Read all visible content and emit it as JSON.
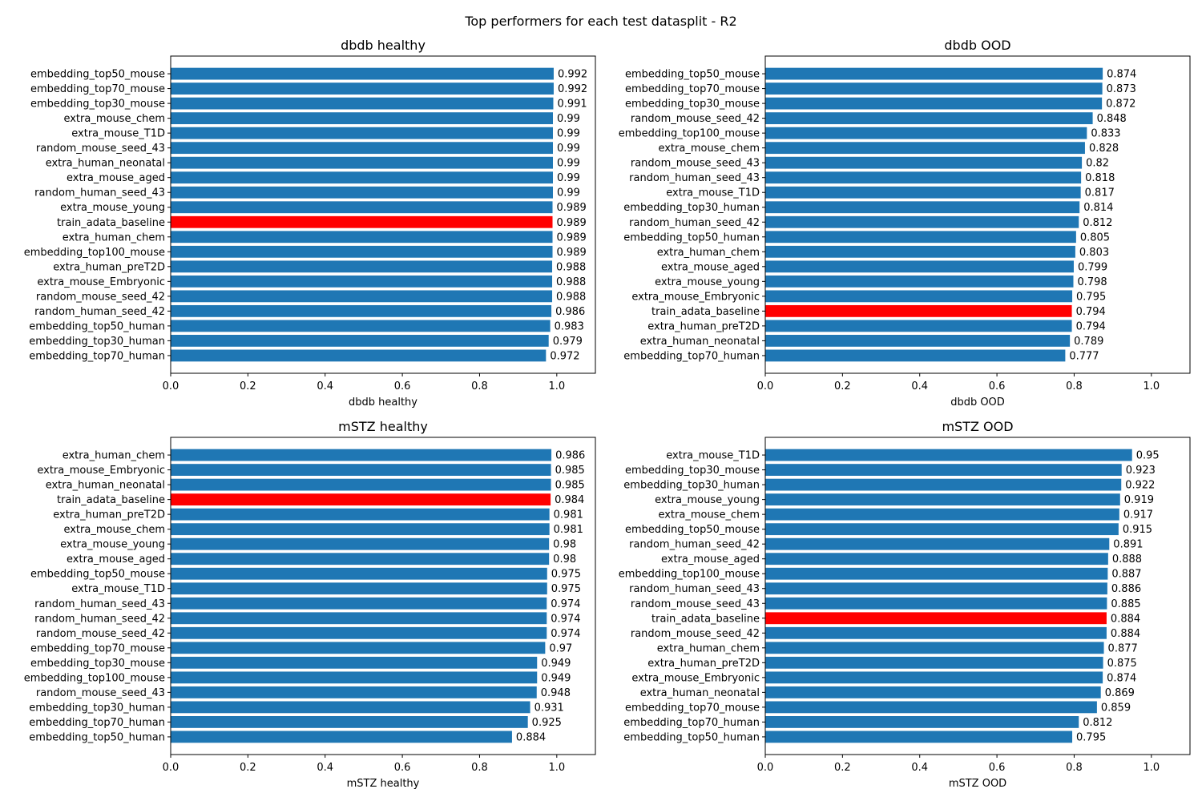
{
  "figure": {
    "title": "Top performers for each test datasplit - R2"
  },
  "colors": {
    "bar": "#1f77b4",
    "highlight": "#ff0000",
    "highlight_label": "train_adata_baseline"
  },
  "chart_data": [
    {
      "type": "bar",
      "orientation": "horizontal",
      "title": "dbdb healthy",
      "xlabel": "dbdb healthy",
      "ylabel": "",
      "xlim": [
        0,
        1.1
      ],
      "xticks": [
        0.0,
        0.2,
        0.4,
        0.6,
        0.8,
        1.0
      ],
      "xtick_labels": [
        "0.0",
        "0.2",
        "0.4",
        "0.6",
        "0.8",
        "1.0"
      ],
      "grid": false,
      "categories": [
        "embedding_top50_mouse",
        "embedding_top70_mouse",
        "embedding_top30_mouse",
        "extra_mouse_chem",
        "extra_mouse_T1D",
        "random_mouse_seed_43",
        "extra_human_neonatal",
        "extra_mouse_aged",
        "random_human_seed_43",
        "extra_mouse_young",
        "train_adata_baseline",
        "extra_human_chem",
        "embedding_top100_mouse",
        "extra_human_preT2D",
        "extra_mouse_Embryonic",
        "random_mouse_seed_42",
        "random_human_seed_42",
        "embedding_top50_human",
        "embedding_top30_human",
        "embedding_top70_human"
      ],
      "values": [
        0.992,
        0.992,
        0.991,
        0.99,
        0.99,
        0.99,
        0.99,
        0.99,
        0.99,
        0.989,
        0.989,
        0.989,
        0.989,
        0.988,
        0.988,
        0.988,
        0.986,
        0.983,
        0.979,
        0.972
      ],
      "value_labels": [
        "0.992",
        "0.992",
        "0.991",
        "0.99",
        "0.99",
        "0.99",
        "0.99",
        "0.99",
        "0.99",
        "0.989",
        "0.989",
        "0.989",
        "0.989",
        "0.988",
        "0.988",
        "0.988",
        "0.986",
        "0.983",
        "0.979",
        "0.972"
      ]
    },
    {
      "type": "bar",
      "orientation": "horizontal",
      "title": "dbdb OOD",
      "xlabel": "dbdb OOD",
      "ylabel": "",
      "xlim": [
        0,
        1.1
      ],
      "xticks": [
        0.0,
        0.2,
        0.4,
        0.6,
        0.8,
        1.0
      ],
      "xtick_labels": [
        "0.0",
        "0.2",
        "0.4",
        "0.6",
        "0.8",
        "1.0"
      ],
      "grid": false,
      "categories": [
        "embedding_top50_mouse",
        "embedding_top70_mouse",
        "embedding_top30_mouse",
        "random_mouse_seed_42",
        "embedding_top100_mouse",
        "extra_mouse_chem",
        "random_mouse_seed_43",
        "random_human_seed_43",
        "extra_mouse_T1D",
        "embedding_top30_human",
        "random_human_seed_42",
        "embedding_top50_human",
        "extra_human_chem",
        "extra_mouse_aged",
        "extra_mouse_young",
        "extra_mouse_Embryonic",
        "train_adata_baseline",
        "extra_human_preT2D",
        "extra_human_neonatal",
        "embedding_top70_human"
      ],
      "values": [
        0.874,
        0.873,
        0.872,
        0.848,
        0.833,
        0.828,
        0.82,
        0.818,
        0.817,
        0.814,
        0.812,
        0.805,
        0.803,
        0.799,
        0.798,
        0.795,
        0.794,
        0.794,
        0.789,
        0.777
      ],
      "value_labels": [
        "0.874",
        "0.873",
        "0.872",
        "0.848",
        "0.833",
        "0.828",
        "0.82",
        "0.818",
        "0.817",
        "0.814",
        "0.812",
        "0.805",
        "0.803",
        "0.799",
        "0.798",
        "0.795",
        "0.794",
        "0.794",
        "0.789",
        "0.777"
      ]
    },
    {
      "type": "bar",
      "orientation": "horizontal",
      "title": "mSTZ healthy",
      "xlabel": "mSTZ healthy",
      "ylabel": "",
      "xlim": [
        0,
        1.1
      ],
      "xticks": [
        0.0,
        0.2,
        0.4,
        0.6,
        0.8,
        1.0
      ],
      "xtick_labels": [
        "0.0",
        "0.2",
        "0.4",
        "0.6",
        "0.8",
        "1.0"
      ],
      "grid": false,
      "categories": [
        "extra_human_chem",
        "extra_mouse_Embryonic",
        "extra_human_neonatal",
        "train_adata_baseline",
        "extra_human_preT2D",
        "extra_mouse_chem",
        "extra_mouse_young",
        "extra_mouse_aged",
        "embedding_top50_mouse",
        "extra_mouse_T1D",
        "random_human_seed_43",
        "random_human_seed_42",
        "random_mouse_seed_42",
        "embedding_top70_mouse",
        "embedding_top30_mouse",
        "embedding_top100_mouse",
        "random_mouse_seed_43",
        "embedding_top30_human",
        "embedding_top70_human",
        "embedding_top50_human"
      ],
      "values": [
        0.986,
        0.985,
        0.985,
        0.984,
        0.981,
        0.981,
        0.98,
        0.98,
        0.975,
        0.975,
        0.974,
        0.974,
        0.974,
        0.97,
        0.949,
        0.949,
        0.948,
        0.931,
        0.925,
        0.884
      ],
      "value_labels": [
        "0.986",
        "0.985",
        "0.985",
        "0.984",
        "0.981",
        "0.981",
        "0.98",
        "0.98",
        "0.975",
        "0.975",
        "0.974",
        "0.974",
        "0.974",
        "0.97",
        "0.949",
        "0.949",
        "0.948",
        "0.931",
        "0.925",
        "0.884"
      ]
    },
    {
      "type": "bar",
      "orientation": "horizontal",
      "title": "mSTZ OOD",
      "xlabel": "mSTZ OOD",
      "ylabel": "",
      "xlim": [
        0,
        1.1
      ],
      "xticks": [
        0.0,
        0.2,
        0.4,
        0.6,
        0.8,
        1.0
      ],
      "xtick_labels": [
        "0.0",
        "0.2",
        "0.4",
        "0.6",
        "0.8",
        "1.0"
      ],
      "grid": false,
      "categories": [
        "extra_mouse_T1D",
        "embedding_top30_mouse",
        "embedding_top30_human",
        "extra_mouse_young",
        "extra_mouse_chem",
        "embedding_top50_mouse",
        "random_human_seed_42",
        "extra_mouse_aged",
        "embedding_top100_mouse",
        "random_human_seed_43",
        "random_mouse_seed_43",
        "train_adata_baseline",
        "random_mouse_seed_42",
        "extra_human_chem",
        "extra_human_preT2D",
        "extra_mouse_Embryonic",
        "extra_human_neonatal",
        "embedding_top70_mouse",
        "embedding_top70_human",
        "embedding_top50_human"
      ],
      "values": [
        0.95,
        0.923,
        0.922,
        0.919,
        0.917,
        0.915,
        0.891,
        0.888,
        0.887,
        0.886,
        0.885,
        0.884,
        0.884,
        0.877,
        0.875,
        0.874,
        0.869,
        0.859,
        0.812,
        0.795
      ],
      "value_labels": [
        "0.95",
        "0.923",
        "0.922",
        "0.919",
        "0.917",
        "0.915",
        "0.891",
        "0.888",
        "0.887",
        "0.886",
        "0.885",
        "0.884",
        "0.884",
        "0.877",
        "0.875",
        "0.874",
        "0.869",
        "0.859",
        "0.812",
        "0.795"
      ]
    }
  ]
}
